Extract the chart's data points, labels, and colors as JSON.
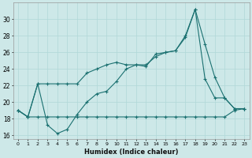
{
  "xlabel": "Humidex (Indice chaleur)",
  "x": [
    0,
    1,
    2,
    3,
    4,
    5,
    6,
    7,
    8,
    9,
    10,
    11,
    12,
    13,
    14,
    15,
    16,
    17,
    18,
    19,
    20,
    21,
    22,
    23
  ],
  "min_line": [
    19.0,
    18.2,
    18.2,
    18.2,
    18.2,
    18.2,
    18.2,
    18.2,
    18.2,
    18.2,
    18.2,
    18.2,
    18.2,
    18.2,
    18.2,
    18.2,
    18.2,
    18.2,
    18.2,
    18.2,
    18.2,
    18.2,
    19.0,
    19.2
  ],
  "mid_line": [
    19.0,
    18.2,
    22.2,
    17.2,
    16.2,
    16.7,
    18.5,
    20.0,
    21.0,
    21.3,
    22.5,
    24.0,
    24.5,
    24.3,
    25.8,
    26.0,
    26.2,
    28.0,
    31.2,
    22.8,
    20.5,
    20.5,
    19.2,
    19.2
  ],
  "max_line": [
    19.0,
    18.2,
    22.2,
    22.2,
    22.2,
    22.2,
    22.2,
    23.5,
    24.0,
    24.5,
    24.8,
    24.5,
    24.5,
    24.5,
    25.5,
    26.0,
    26.2,
    27.8,
    31.2,
    27.0,
    23.0,
    20.5,
    19.2,
    19.2
  ],
  "bg_color": "#cde8e8",
  "line_color": "#1a7070",
  "ylim": [
    15.5,
    32
  ],
  "yticks": [
    16,
    18,
    20,
    22,
    24,
    26,
    28,
    30
  ],
  "grid_color": "#b0d8d8",
  "figsize": [
    3.2,
    2.0
  ],
  "dpi": 100
}
